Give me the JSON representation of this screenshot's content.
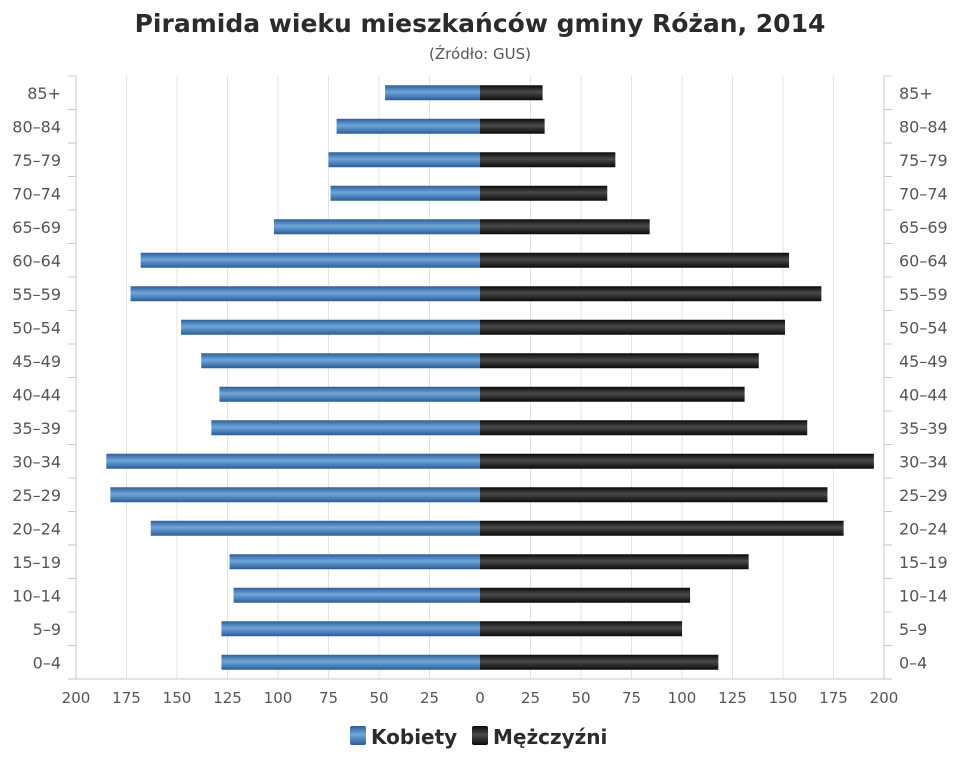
{
  "chart_data": {
    "type": "bar",
    "orientation": "horizontal-pyramid",
    "title": "Piramida wieku mieszkańców gminy Różan, 2014",
    "subtitle": "(Źródło: GUS)",
    "categories": [
      "85+",
      "80–84",
      "75–79",
      "70–74",
      "65–69",
      "60–64",
      "55–59",
      "50–54",
      "45–49",
      "40–44",
      "35–39",
      "30–34",
      "25–29",
      "20–24",
      "15–19",
      "10–14",
      "5–9",
      "0–4"
    ],
    "series": [
      {
        "name": "Kobiety",
        "side": "left",
        "color": "#3a78b8",
        "values": [
          47,
          71,
          75,
          74,
          102,
          168,
          173,
          148,
          138,
          129,
          133,
          185,
          183,
          163,
          124,
          122,
          128,
          128
        ]
      },
      {
        "name": "Mężczyźni",
        "side": "right",
        "color": "#1e1e1e",
        "values": [
          31,
          32,
          67,
          63,
          84,
          153,
          169,
          151,
          138,
          131,
          162,
          195,
          172,
          180,
          133,
          104,
          100,
          118
        ]
      }
    ],
    "xlim": [
      0,
      200
    ],
    "x_ticks": [
      "200",
      "175",
      "150",
      "125",
      "100",
      "75",
      "50",
      "25",
      "0",
      "25",
      "50",
      "75",
      "100",
      "125",
      "150",
      "175",
      "200"
    ],
    "grid": true,
    "legend_position": "bottom"
  }
}
